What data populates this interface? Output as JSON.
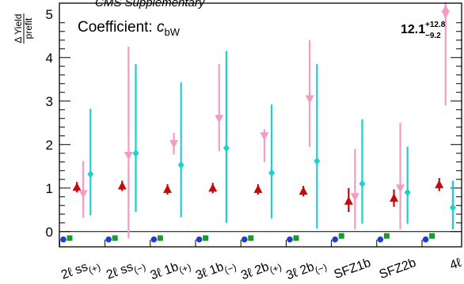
{
  "header_fragment": "CMS Supplementary",
  "chart_data": {
    "type": "scatter",
    "ylabel_numerator": "Δ Yield",
    "ylabel_denominator": "prefit",
    "ylim": [
      -0.35,
      5.25
    ],
    "yticks": [
      "0",
      "1",
      "2",
      "3",
      "4",
      "5"
    ],
    "categories": [
      {
        "base": "2ℓ ss",
        "sub": "(+)"
      },
      {
        "base": "2ℓ ss",
        "sub": "(−)"
      },
      {
        "base": "3ℓ 1b",
        "sub": "(+)"
      },
      {
        "base": "3ℓ 1b",
        "sub": "(−)"
      },
      {
        "base": "3ℓ 2b",
        "sub": "(+)"
      },
      {
        "base": "3ℓ 2b",
        "sub": "(−)"
      },
      {
        "base": "SFZ1b",
        "sub": ""
      },
      {
        "base": "SFZ2b",
        "sub": ""
      },
      {
        "base": "4ℓ",
        "sub": ""
      }
    ],
    "coefficient_label": "Coefficient: ",
    "coefficient_symbol": "c",
    "coefficient_subscript": "bW",
    "best_fit": {
      "value": "12.1",
      "plus": "+12.8",
      "minus": "−9.2"
    },
    "series": [
      {
        "color": "#1f3bd8",
        "marker": "circle",
        "points": [
          [
            -0.42,
            -0.18,
            0.05,
            0.05
          ],
          [
            0.58,
            -0.18,
            0.05,
            0.05
          ],
          [
            1.58,
            -0.18,
            0.05,
            0.05
          ],
          [
            2.58,
            -0.18,
            0.05,
            0.05
          ],
          [
            3.58,
            -0.18,
            0.05,
            0.05
          ],
          [
            4.58,
            -0.18,
            0.05,
            0.05
          ],
          [
            5.58,
            -0.18,
            0.05,
            0.05
          ],
          [
            6.58,
            -0.18,
            0.05,
            0.05
          ],
          [
            7.58,
            -0.18,
            0.05,
            0.05
          ]
        ]
      },
      {
        "color": "#1a9a2a",
        "marker": "square",
        "points": [
          [
            -0.28,
            -0.15,
            0.05,
            0.05
          ],
          [
            0.72,
            -0.15,
            0.05,
            0.05
          ],
          [
            1.72,
            -0.15,
            0.05,
            0.05
          ],
          [
            2.72,
            -0.15,
            0.05,
            0.05
          ],
          [
            3.72,
            -0.15,
            0.05,
            0.05
          ],
          [
            4.72,
            -0.15,
            0.05,
            0.05
          ],
          [
            5.72,
            -0.1,
            0.05,
            0.05
          ],
          [
            6.72,
            -0.1,
            0.05,
            0.05
          ],
          [
            7.72,
            -0.1,
            0.05,
            0.05
          ]
        ]
      },
      {
        "color": "#c40a0a",
        "marker": "triangle",
        "points": [
          [
            -0.12,
            1.02,
            0.12,
            0.12
          ],
          [
            0.88,
            1.05,
            0.12,
            0.12
          ],
          [
            1.88,
            0.97,
            0.12,
            0.12
          ],
          [
            2.88,
            1.0,
            0.12,
            0.12
          ],
          [
            3.88,
            0.97,
            0.12,
            0.12
          ],
          [
            4.88,
            0.93,
            0.12,
            0.12
          ],
          [
            5.88,
            0.7,
            0.3,
            0.25
          ],
          [
            6.88,
            0.77,
            0.2,
            0.2
          ],
          [
            7.88,
            1.08,
            0.15,
            0.15
          ]
        ]
      },
      {
        "color": "#f59ac8",
        "marker": "triangle-down",
        "points": [
          [
            0.02,
            0.87,
            0.75,
            0.55
          ],
          [
            1.02,
            1.75,
            2.5,
            1.9
          ],
          [
            2.02,
            2.02,
            0.25,
            0.25
          ],
          [
            3.02,
            2.6,
            1.25,
            0.75
          ],
          [
            4.02,
            2.2,
            0.15,
            0.6
          ],
          [
            5.02,
            3.05,
            1.35,
            1.1
          ],
          [
            6.02,
            0.8,
            1.1,
            0.75
          ],
          [
            7.02,
            1.0,
            1.5,
            0.95
          ],
          [
            8.02,
            5.0,
            0.35,
            2.1
          ]
        ]
      },
      {
        "color": "#1ccfd0",
        "marker": "diamond",
        "points": [
          [
            0.18,
            1.32,
            1.5,
            0.95
          ],
          [
            1.18,
            1.8,
            2.05,
            1.35
          ],
          [
            2.18,
            1.53,
            1.9,
            1.2
          ],
          [
            3.18,
            1.92,
            2.23,
            1.72
          ],
          [
            4.18,
            1.35,
            1.57,
            1.05
          ],
          [
            5.18,
            1.62,
            2.23,
            1.55
          ],
          [
            6.18,
            1.1,
            1.48,
            0.92
          ],
          [
            7.18,
            0.9,
            1.05,
            0.72
          ],
          [
            8.18,
            0.55,
            0.62,
            0.5
          ]
        ]
      }
    ]
  }
}
